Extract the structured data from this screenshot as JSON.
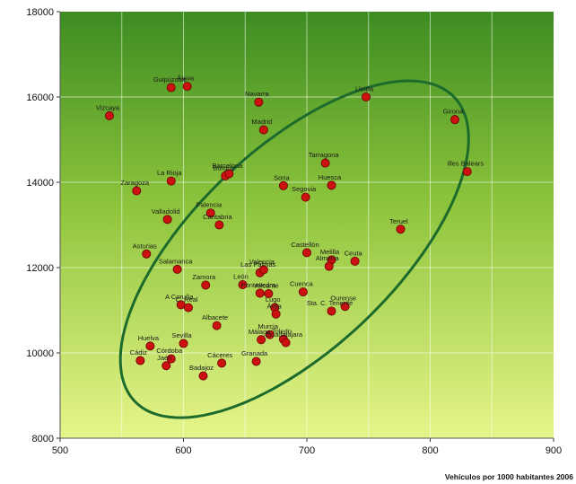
{
  "chart_data": {
    "type": "scatter",
    "xlabel": "Vehículos por 1000 habitantes 2006",
    "ylabel": "",
    "title": "",
    "xlim": [
      500,
      900
    ],
    "ylim": [
      8000,
      18000
    ],
    "xticks": [
      500,
      600,
      700,
      800,
      900
    ],
    "yticks": [
      8000,
      10000,
      12000,
      14000,
      16000,
      18000
    ],
    "grid": true,
    "colors": {
      "point": "#cc1111",
      "point_stroke": "#6a0000",
      "ellipse": "#1d6b2c",
      "bg_top": "#3d8c22",
      "bg_bottom": "#e6f58a"
    },
    "ellipse": {
      "center": [
        690,
        12430
      ],
      "semi_major_units": [
        130,
        3550
      ],
      "semi_minor_units": [
        -55,
        1730
      ]
    },
    "points": [
      {
        "label": "Vizcaya",
        "x": 540,
        "y": 15560
      },
      {
        "label": "Guipúzcoa",
        "x": 590,
        "y": 16220
      },
      {
        "label": "Álava",
        "x": 603,
        "y": 16250
      },
      {
        "label": "Navarra",
        "x": 661,
        "y": 15880
      },
      {
        "label": "Madrid",
        "x": 665,
        "y": 15230
      },
      {
        "label": "Lleida",
        "x": 748,
        "y": 16000
      },
      {
        "label": "Girona",
        "x": 820,
        "y": 15470
      },
      {
        "label": "Zaragoza",
        "x": 562,
        "y": 13800
      },
      {
        "label": "La Rioja",
        "x": 590,
        "y": 14030
      },
      {
        "label": "Burgos",
        "x": 634,
        "y": 14150
      },
      {
        "label": "Barcelona",
        "x": 637,
        "y": 14200
      },
      {
        "label": "Tarragona",
        "x": 715,
        "y": 14450
      },
      {
        "label": "Illes Balears",
        "x": 830,
        "y": 14250
      },
      {
        "label": "Soria",
        "x": 681,
        "y": 13920
      },
      {
        "label": "Huesca",
        "x": 720,
        "y": 13930
      },
      {
        "label": "Segovia",
        "x": 699,
        "y": 13650
      },
      {
        "label": "Valladolid",
        "x": 587,
        "y": 13130
      },
      {
        "label": "Palencia",
        "x": 622,
        "y": 13280
      },
      {
        "label": "Cantabria",
        "x": 629,
        "y": 13000
      },
      {
        "label": "Teruel",
        "x": 776,
        "y": 12900
      },
      {
        "label": "Asturias",
        "x": 570,
        "y": 12320
      },
      {
        "label": "Castellón",
        "x": 700,
        "y": 12350
      },
      {
        "label": "Melilla",
        "x": 720,
        "y": 12180
      },
      {
        "label": "Ceuta",
        "x": 739,
        "y": 12150
      },
      {
        "label": "Almería",
        "x": 718,
        "y": 12030
      },
      {
        "label": "Salamanca",
        "x": 595,
        "y": 11960
      },
      {
        "label": "Las Palmas",
        "x": 662,
        "y": 11880
      },
      {
        "label": "Valencia",
        "x": 665,
        "y": 11950
      },
      {
        "label": "Zamora",
        "x": 618,
        "y": 11590
      },
      {
        "label": "León",
        "x": 648,
        "y": 11600
      },
      {
        "label": "Alicante",
        "x": 669,
        "y": 11390
      },
      {
        "label": "Cuenca",
        "x": 697,
        "y": 11430
      },
      {
        "label": "Pontevedra",
        "x": 662,
        "y": 11400
      },
      {
        "label": "A Coruña",
        "x": 598,
        "y": 11130
      },
      {
        "label": "C. Real",
        "x": 604,
        "y": 11060
      },
      {
        "label": "Lugo",
        "x": 674,
        "y": 11060
      },
      {
        "label": "Ávila",
        "x": 675,
        "y": 10910
      },
      {
        "label": "Ourense",
        "x": 731,
        "y": 11090
      },
      {
        "label": "Sta. C. Tenerife",
        "x": 720,
        "y": 10980
      },
      {
        "label": "Albacete",
        "x": 627,
        "y": 10640
      },
      {
        "label": "Murcia",
        "x": 670,
        "y": 10430
      },
      {
        "label": "Málaga",
        "x": 663,
        "y": 10310
      },
      {
        "label": "Toledo",
        "x": 681,
        "y": 10320
      },
      {
        "label": "Guadalajara",
        "x": 683,
        "y": 10240
      },
      {
        "label": "Huelva",
        "x": 573,
        "y": 10160
      },
      {
        "label": "Sevilla",
        "x": 600,
        "y": 10220
      },
      {
        "label": "Cádiz",
        "x": 565,
        "y": 9820
      },
      {
        "label": "Córdoba",
        "x": 590,
        "y": 9860
      },
      {
        "label": "Jaén",
        "x": 586,
        "y": 9700
      },
      {
        "label": "Cáceres",
        "x": 631,
        "y": 9760
      },
      {
        "label": "Granada",
        "x": 659,
        "y": 9800
      },
      {
        "label": "Badajoz",
        "x": 616,
        "y": 9460
      }
    ]
  }
}
